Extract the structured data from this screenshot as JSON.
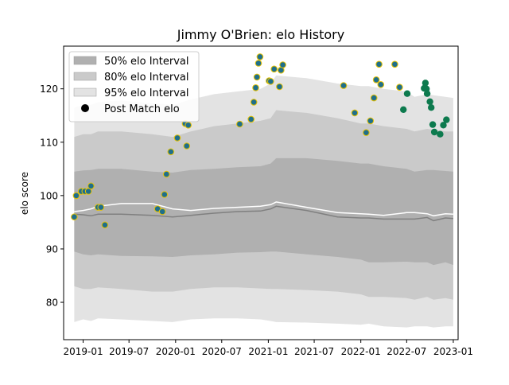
{
  "chart_data": {
    "type": "scatter",
    "title": "Jimmy O'Brien: elo History",
    "xlabel": "",
    "ylabel": "elo score",
    "xlim": [
      "2018-10-16",
      "2023-01-20"
    ],
    "ylim": [
      73,
      128
    ],
    "x_ticks": [
      "2019-01",
      "2019-07",
      "2020-01",
      "2020-07",
      "2021-01",
      "2021-07",
      "2022-01",
      "2022-07",
      "2023-01"
    ],
    "y_ticks": [
      80,
      90,
      100,
      110,
      120
    ],
    "grid": false,
    "legend_position": "top-left",
    "legend": {
      "band50": "50% elo Interval",
      "band80": "80% elo Interval",
      "band95": "95% elo Interval",
      "points": "Post Match elo"
    },
    "colors": {
      "band50": "#b0b0b0",
      "band80": "#cacaca",
      "band95": "#e3e3e3",
      "median_line": "#808080",
      "mean_line": "#ffffff",
      "point_fill": "#1f6f8b",
      "point_edge": "#e8c200",
      "recent_point": "#0d7a4e"
    },
    "intervals": {
      "x": [
        "2018-11-27",
        "2019-01-01",
        "2019-02-01",
        "2019-03-01",
        "2019-06-01",
        "2019-10-01",
        "2019-12-20",
        "2020-03-01",
        "2020-06-01",
        "2020-09-01",
        "2020-12-01",
        "2021-01-10",
        "2021-02-01",
        "2021-06-01",
        "2021-10-01",
        "2022-01-01",
        "2022-02-01",
        "2022-04-01",
        "2022-07-01",
        "2022-08-01",
        "2022-09-20",
        "2022-10-15",
        "2022-12-01",
        "2023-01-01"
      ],
      "median": [
        96.5,
        96.4,
        96.2,
        96.5,
        96.5,
        96.3,
        96.0,
        96.3,
        96.7,
        97.0,
        97.1,
        97.5,
        98.0,
        97.2,
        96.0,
        95.8,
        95.8,
        95.6,
        95.6,
        95.6,
        95.9,
        95.3,
        95.8,
        95.7
      ],
      "lo50": [
        89.5,
        89.0,
        88.8,
        89.0,
        88.7,
        88.6,
        88.5,
        88.8,
        89.0,
        89.3,
        89.4,
        89.5,
        89.5,
        89.0,
        88.5,
        88.0,
        87.5,
        87.5,
        87.6,
        87.5,
        87.5,
        87.0,
        87.5,
        87.0
      ],
      "hi50": [
        104.5,
        104.7,
        104.8,
        105.0,
        105.0,
        104.5,
        104.3,
        104.8,
        105.0,
        105.3,
        105.5,
        106.0,
        107.0,
        107.0,
        106.5,
        106.0,
        106.0,
        105.5,
        105.0,
        104.5,
        104.8,
        104.8,
        104.6,
        104.5
      ],
      "lo80": [
        83.0,
        82.5,
        82.5,
        82.8,
        82.5,
        82.0,
        82.0,
        82.5,
        82.8,
        82.8,
        82.6,
        82.5,
        82.5,
        82.3,
        82.0,
        81.5,
        81.0,
        81.0,
        80.8,
        80.5,
        81.0,
        80.5,
        80.8,
        80.5
      ],
      "hi80": [
        111.0,
        111.5,
        111.5,
        112.0,
        112.0,
        111.5,
        111.0,
        112.0,
        113.0,
        113.5,
        114.0,
        114.5,
        116.0,
        115.5,
        114.5,
        113.5,
        113.5,
        113.0,
        112.5,
        112.0,
        112.5,
        112.3,
        112.0,
        112.0
      ],
      "lo95": [
        76.3,
        76.8,
        76.5,
        77.0,
        76.8,
        76.5,
        76.3,
        76.8,
        77.0,
        77.0,
        76.8,
        76.5,
        76.3,
        76.2,
        76.0,
        75.8,
        76.0,
        75.5,
        75.3,
        75.5,
        75.5,
        75.3,
        75.5,
        75.5
      ],
      "hi95": [
        116.5,
        117.0,
        117.0,
        117.5,
        117.8,
        117.3,
        117.0,
        118.0,
        119.0,
        119.5,
        120.0,
        121.0,
        122.5,
        122.0,
        121.0,
        120.5,
        120.5,
        120.0,
        119.5,
        118.5,
        119.0,
        118.8,
        118.5,
        118.3
      ],
      "mean": [
        97.0,
        97.2,
        97.5,
        98.0,
        98.5,
        98.5,
        97.5,
        97.2,
        97.6,
        97.8,
        98.0,
        98.3,
        98.8,
        97.8,
        96.8,
        96.6,
        96.5,
        96.3,
        96.8,
        96.8,
        96.6,
        96.2,
        96.6,
        96.5
      ]
    },
    "points": {
      "x": [
        "2018-11-27",
        "2018-12-05",
        "2018-12-25",
        "2019-01-08",
        "2019-01-22",
        "2019-02-01",
        "2019-03-01",
        "2019-03-12",
        "2019-03-28",
        "2019-10-22",
        "2019-11-10",
        "2019-11-18",
        "2019-11-26",
        "2019-12-13",
        "2020-01-08",
        "2020-02-08",
        "2020-02-14",
        "2020-02-20",
        "2020-09-10",
        "2020-10-25",
        "2020-11-05",
        "2020-11-12",
        "2020-11-17",
        "2020-11-23",
        "2020-11-29",
        "2021-01-04",
        "2021-01-10",
        "2021-01-24",
        "2021-02-14",
        "2021-02-20",
        "2021-02-27",
        "2021-10-25",
        "2021-12-08",
        "2022-01-22",
        "2022-02-08",
        "2022-02-22",
        "2022-03-03",
        "2022-03-14",
        "2022-03-21",
        "2022-05-15",
        "2022-06-03",
        "2022-06-18",
        "2022-07-03",
        "2022-09-08",
        "2022-09-13",
        "2022-09-17",
        "2022-09-20",
        "2022-10-01",
        "2022-10-06",
        "2022-10-12",
        "2022-10-18",
        "2022-11-10",
        "2022-11-23",
        "2022-12-05"
      ],
      "y": [
        96.0,
        100.0,
        100.8,
        100.8,
        100.8,
        101.8,
        97.8,
        97.8,
        94.5,
        97.5,
        97.0,
        100.2,
        104.0,
        108.2,
        110.8,
        113.5,
        109.3,
        113.2,
        113.4,
        114.3,
        117.5,
        120.2,
        122.2,
        124.8,
        126.0,
        121.5,
        121.4,
        123.7,
        120.4,
        123.5,
        124.5,
        120.6,
        115.5,
        111.8,
        114.0,
        118.3,
        121.7,
        124.6,
        120.8,
        124.6,
        120.3,
        116.1,
        119.1,
        120.1,
        121.1,
        120.0,
        119.1,
        117.6,
        116.5,
        113.3,
        111.9,
        111.5,
        113.2,
        114.2
      ],
      "recent_from_index": 41
    }
  }
}
